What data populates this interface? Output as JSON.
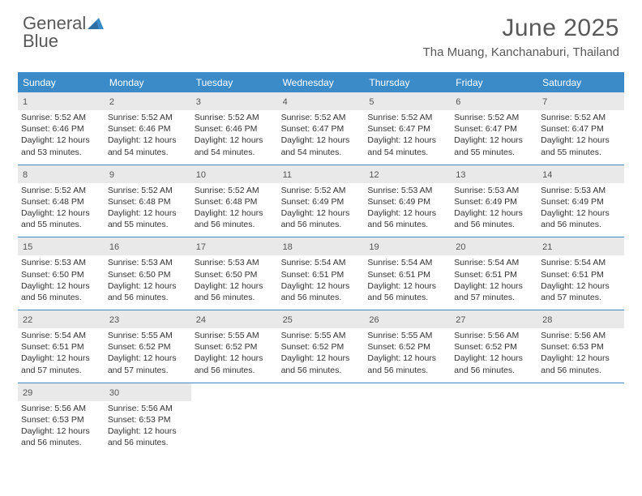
{
  "colors": {
    "accent": "#3b8bc9",
    "text_gray": "#595959",
    "daynum_bg": "#e9e9e9",
    "body_text": "#333333",
    "background": "#ffffff"
  },
  "logo": {
    "word1": "General",
    "word2": "Blue"
  },
  "header": {
    "month_title": "June 2025",
    "location": "Tha Muang, Kanchanaburi, Thailand"
  },
  "weekdays": [
    "Sunday",
    "Monday",
    "Tuesday",
    "Wednesday",
    "Thursday",
    "Friday",
    "Saturday"
  ],
  "calendar_type": "table",
  "grid": {
    "cols": 7,
    "rows": 5
  },
  "typography": {
    "header_fontsize": 30,
    "location_fontsize": 15,
    "weekday_fontsize": 12,
    "cell_fontsize": 10.5
  },
  "days": [
    {
      "n": "1",
      "sr": "5:52 AM",
      "ss": "6:46 PM",
      "dl": "12 hours and 53 minutes."
    },
    {
      "n": "2",
      "sr": "5:52 AM",
      "ss": "6:46 PM",
      "dl": "12 hours and 54 minutes."
    },
    {
      "n": "3",
      "sr": "5:52 AM",
      "ss": "6:46 PM",
      "dl": "12 hours and 54 minutes."
    },
    {
      "n": "4",
      "sr": "5:52 AM",
      "ss": "6:47 PM",
      "dl": "12 hours and 54 minutes."
    },
    {
      "n": "5",
      "sr": "5:52 AM",
      "ss": "6:47 PM",
      "dl": "12 hours and 54 minutes."
    },
    {
      "n": "6",
      "sr": "5:52 AM",
      "ss": "6:47 PM",
      "dl": "12 hours and 55 minutes."
    },
    {
      "n": "7",
      "sr": "5:52 AM",
      "ss": "6:47 PM",
      "dl": "12 hours and 55 minutes."
    },
    {
      "n": "8",
      "sr": "5:52 AM",
      "ss": "6:48 PM",
      "dl": "12 hours and 55 minutes."
    },
    {
      "n": "9",
      "sr": "5:52 AM",
      "ss": "6:48 PM",
      "dl": "12 hours and 55 minutes."
    },
    {
      "n": "10",
      "sr": "5:52 AM",
      "ss": "6:48 PM",
      "dl": "12 hours and 56 minutes."
    },
    {
      "n": "11",
      "sr": "5:52 AM",
      "ss": "6:49 PM",
      "dl": "12 hours and 56 minutes."
    },
    {
      "n": "12",
      "sr": "5:53 AM",
      "ss": "6:49 PM",
      "dl": "12 hours and 56 minutes."
    },
    {
      "n": "13",
      "sr": "5:53 AM",
      "ss": "6:49 PM",
      "dl": "12 hours and 56 minutes."
    },
    {
      "n": "14",
      "sr": "5:53 AM",
      "ss": "6:49 PM",
      "dl": "12 hours and 56 minutes."
    },
    {
      "n": "15",
      "sr": "5:53 AM",
      "ss": "6:50 PM",
      "dl": "12 hours and 56 minutes."
    },
    {
      "n": "16",
      "sr": "5:53 AM",
      "ss": "6:50 PM",
      "dl": "12 hours and 56 minutes."
    },
    {
      "n": "17",
      "sr": "5:53 AM",
      "ss": "6:50 PM",
      "dl": "12 hours and 56 minutes."
    },
    {
      "n": "18",
      "sr": "5:54 AM",
      "ss": "6:51 PM",
      "dl": "12 hours and 56 minutes."
    },
    {
      "n": "19",
      "sr": "5:54 AM",
      "ss": "6:51 PM",
      "dl": "12 hours and 56 minutes."
    },
    {
      "n": "20",
      "sr": "5:54 AM",
      "ss": "6:51 PM",
      "dl": "12 hours and 57 minutes."
    },
    {
      "n": "21",
      "sr": "5:54 AM",
      "ss": "6:51 PM",
      "dl": "12 hours and 57 minutes."
    },
    {
      "n": "22",
      "sr": "5:54 AM",
      "ss": "6:51 PM",
      "dl": "12 hours and 57 minutes."
    },
    {
      "n": "23",
      "sr": "5:55 AM",
      "ss": "6:52 PM",
      "dl": "12 hours and 57 minutes."
    },
    {
      "n": "24",
      "sr": "5:55 AM",
      "ss": "6:52 PM",
      "dl": "12 hours and 56 minutes."
    },
    {
      "n": "25",
      "sr": "5:55 AM",
      "ss": "6:52 PM",
      "dl": "12 hours and 56 minutes."
    },
    {
      "n": "26",
      "sr": "5:55 AM",
      "ss": "6:52 PM",
      "dl": "12 hours and 56 minutes."
    },
    {
      "n": "27",
      "sr": "5:56 AM",
      "ss": "6:52 PM",
      "dl": "12 hours and 56 minutes."
    },
    {
      "n": "28",
      "sr": "5:56 AM",
      "ss": "6:53 PM",
      "dl": "12 hours and 56 minutes."
    },
    {
      "n": "29",
      "sr": "5:56 AM",
      "ss": "6:53 PM",
      "dl": "12 hours and 56 minutes."
    },
    {
      "n": "30",
      "sr": "5:56 AM",
      "ss": "6:53 PM",
      "dl": "12 hours and 56 minutes."
    }
  ],
  "labels": {
    "sunrise_prefix": "Sunrise: ",
    "sunset_prefix": "Sunset: ",
    "daylight_prefix": "Daylight: "
  }
}
